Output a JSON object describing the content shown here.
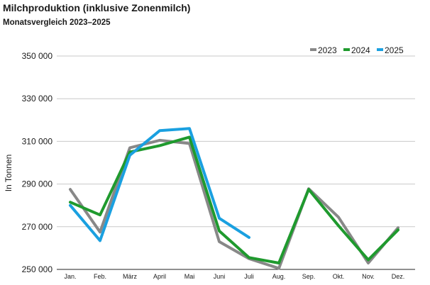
{
  "title": "Milchproduktion (inklusive Zonenmilch)",
  "subtitle": "Monatsvergleich 2023–2025",
  "chart_data": {
    "type": "line",
    "title": "Milchproduktion (inklusive Zonenmilch)",
    "subtitle": "Monatsvergleich 2023–2025",
    "xlabel": "",
    "ylabel": "In Tonnen",
    "ylim": [
      250000,
      350000
    ],
    "yticks": [
      250000,
      270000,
      290000,
      310000,
      330000,
      350000
    ],
    "ytick_labels": [
      "250 000",
      "270 000",
      "290 000",
      "310 000",
      "330 000",
      "350 000"
    ],
    "categories": [
      "Jan.",
      "Feb.",
      "März",
      "April",
      "Mai",
      "Juni",
      "Juli",
      "Aug.",
      "Sep.",
      "Okt.",
      "Nov.",
      "Dez."
    ],
    "grid": "horizontal",
    "legend_position": "top-right",
    "series": [
      {
        "name": "2023",
        "color": "#888888",
        "values": [
          287500,
          267500,
          307000,
          310500,
          309000,
          263000,
          255000,
          250500,
          287800,
          274500,
          253000,
          269500
        ]
      },
      {
        "name": "2024",
        "color": "#1f9a2e",
        "values": [
          281500,
          275500,
          305000,
          308000,
          312000,
          268000,
          255500,
          253000,
          287500,
          270500,
          254500,
          268500
        ]
      },
      {
        "name": "2025",
        "color": "#1aa0e0",
        "values": [
          280000,
          263500,
          303500,
          315000,
          316000,
          274000,
          265000,
          null,
          null,
          null,
          null,
          null
        ]
      }
    ]
  }
}
